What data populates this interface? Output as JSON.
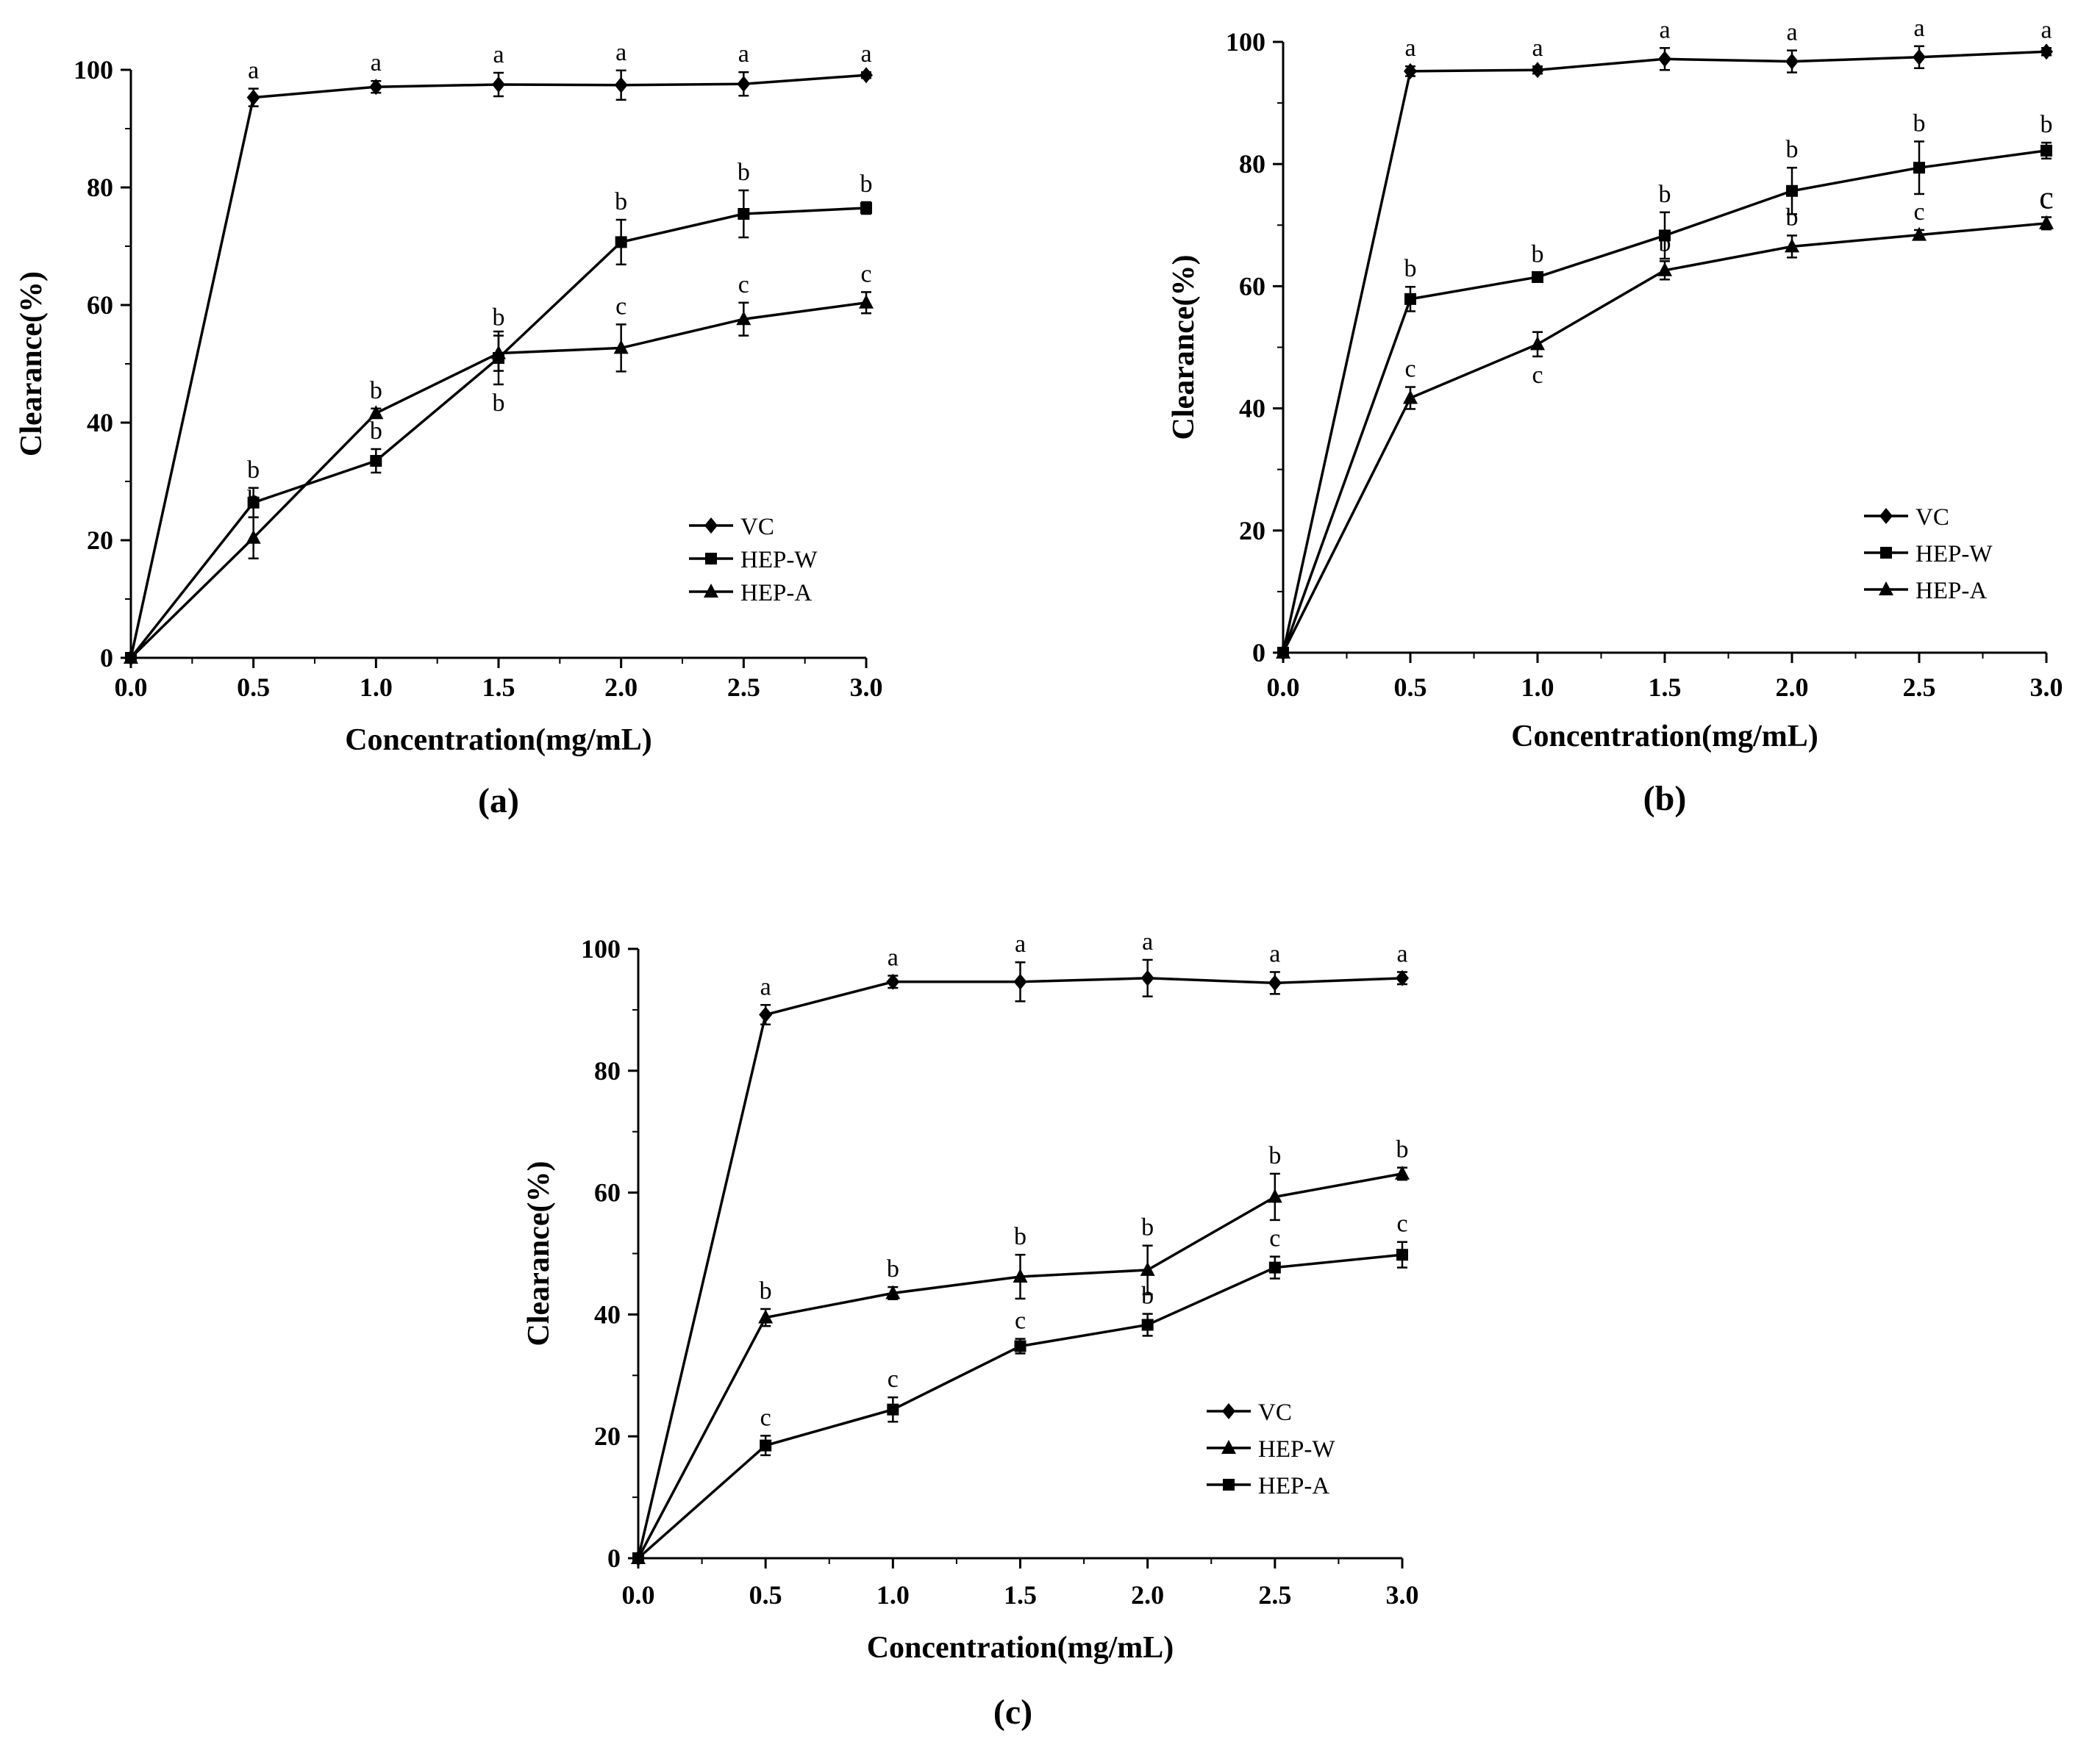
{
  "chart_data": [
    {
      "type": "line",
      "panel_label": "(a)",
      "xlabel": "Concentration(mg/mL)",
      "ylabel": "Clearance(%)",
      "xlim": [
        0,
        3
      ],
      "ylim": [
        0,
        100
      ],
      "x_ticks": [
        "0.0",
        "0.5",
        "1.0",
        "1.5",
        "2.0",
        "2.5",
        "3.0"
      ],
      "y_ticks": [
        "0",
        "20",
        "40",
        "60",
        "80",
        "100"
      ],
      "x": [
        0,
        0.5,
        1.0,
        1.5,
        2.0,
        2.5,
        3.0
      ],
      "legend_position": "bottom-right",
      "series": [
        {
          "name": "VC",
          "marker": "diamond",
          "values": [
            0,
            95.3,
            97.1,
            97.5,
            97.4,
            97.6,
            99.1
          ],
          "errors": [
            0,
            1.5,
            1.0,
            2.0,
            2.5,
            2.0,
            0.5
          ],
          "labels": [
            "",
            "a",
            "a",
            "a",
            "a",
            "a",
            "a"
          ],
          "label_side": [
            "up",
            "up",
            "up",
            "up",
            "up",
            "up",
            "up"
          ]
        },
        {
          "name": "HEP-W",
          "marker": "square",
          "values": [
            0,
            26.4,
            33.5,
            51.0,
            70.7,
            75.5,
            76.5
          ],
          "errors": [
            0,
            2.5,
            2.0,
            4.5,
            3.8,
            4.0,
            1.0
          ],
          "labels": [
            "",
            "b",
            "b",
            "b",
            "b",
            "b",
            "b"
          ],
          "label_side": [
            "up",
            "up",
            "up",
            "down",
            "up",
            "up",
            "up"
          ]
        },
        {
          "name": "HEP-A",
          "marker": "triangle",
          "values": [
            0,
            20.4,
            41.6,
            51.8,
            52.7,
            57.6,
            60.4
          ],
          "errors": [
            0,
            3.5,
            0.8,
            3.0,
            4.0,
            2.8,
            1.8
          ],
          "labels": [
            "",
            "b",
            "b",
            "b",
            "c",
            "c",
            "c"
          ],
          "label_side": [
            "down",
            "up",
            "up",
            "up",
            "up",
            "up",
            "up"
          ]
        }
      ]
    },
    {
      "type": "line",
      "panel_label": "(b)",
      "xlabel": "Concentration(mg/mL)",
      "ylabel": "Clearance(%)",
      "xlim": [
        0,
        3
      ],
      "ylim": [
        0,
        100
      ],
      "x_ticks": [
        "0.0",
        "0.5",
        "1.0",
        "1.5",
        "2.0",
        "2.5",
        "3.0"
      ],
      "y_ticks": [
        "0",
        "20",
        "40",
        "60",
        "80",
        "100"
      ],
      "x": [
        0,
        0.5,
        1.0,
        1.5,
        2.0,
        2.5,
        3.0
      ],
      "legend_position": "bottom-right",
      "series": [
        {
          "name": "VC",
          "marker": "diamond",
          "values": [
            0,
            95.2,
            95.4,
            97.2,
            96.8,
            97.5,
            98.4
          ],
          "errors": [
            0,
            0.8,
            0.6,
            1.8,
            1.8,
            1.8,
            0.6
          ],
          "labels": [
            "",
            "a",
            "a",
            "a",
            "a",
            "a",
            "a"
          ],
          "label_side": [
            "up",
            "up",
            "up",
            "up",
            "up",
            "up",
            "up"
          ]
        },
        {
          "name": "HEP-W",
          "marker": "square",
          "values": [
            0,
            57.9,
            61.5,
            68.3,
            75.6,
            79.4,
            82.2
          ],
          "errors": [
            0,
            2.0,
            0.8,
            3.8,
            3.8,
            4.3,
            1.3
          ],
          "labels": [
            "",
            "b",
            "b",
            "b",
            "b",
            "b",
            "b"
          ],
          "label_side": [
            "up",
            "up",
            "up",
            "up",
            "up",
            "up",
            "up"
          ]
        },
        {
          "name": "HEP-A",
          "marker": "triangle",
          "values": [
            0,
            41.7,
            50.5,
            62.6,
            66.5,
            68.4,
            70.3
          ],
          "errors": [
            0,
            1.8,
            2.0,
            1.5,
            1.8,
            0.8,
            1.0
          ],
          "labels": [
            "",
            "c",
            "c",
            "b",
            "b",
            "c",
            "c"
          ],
          "label_side": [
            "up",
            "up",
            "down",
            "up",
            "up",
            "up",
            "up"
          ]
        }
      ]
    },
    {
      "type": "line",
      "panel_label": "(c)",
      "xlabel": "Concentration(mg/mL)",
      "ylabel": "Clearance(%)",
      "xlim": [
        0,
        3
      ],
      "ylim": [
        0,
        100
      ],
      "x_ticks": [
        "0.0",
        "0.5",
        "1.0",
        "1.5",
        "2.0",
        "2.5",
        "3.0"
      ],
      "y_ticks": [
        "0",
        "20",
        "40",
        "60",
        "80",
        "100"
      ],
      "x": [
        0,
        0.5,
        1.0,
        1.5,
        2.0,
        2.5,
        3.0
      ],
      "legend_position": "bottom-right",
      "series": [
        {
          "name": "VC",
          "marker": "diamond",
          "values": [
            0,
            89.2,
            94.6,
            94.6,
            95.2,
            94.4,
            95.2
          ],
          "errors": [
            0,
            1.6,
            1.0,
            3.2,
            3.0,
            1.8,
            1.0
          ],
          "labels": [
            "",
            "a",
            "a",
            "a",
            "a",
            "a",
            "a"
          ],
          "label_side": [
            "up",
            "up",
            "up",
            "up",
            "up",
            "up",
            "up"
          ]
        },
        {
          "name": "HEP-W",
          "marker": "triangle",
          "values": [
            0,
            39.5,
            43.5,
            46.2,
            47.3,
            59.3,
            63.1
          ],
          "errors": [
            0,
            1.4,
            1.0,
            3.6,
            4.0,
            3.8,
            1.0
          ],
          "labels": [
            "",
            "b",
            "b",
            "b",
            "b",
            "b",
            "b"
          ],
          "label_side": [
            "up",
            "up",
            "up",
            "up",
            "up",
            "up",
            "up"
          ]
        },
        {
          "name": "HEP-A",
          "marker": "square",
          "values": [
            0,
            18.5,
            24.4,
            34.8,
            38.3,
            47.7,
            49.8
          ],
          "errors": [
            0,
            1.6,
            2.0,
            1.2,
            1.8,
            1.8,
            2.1
          ],
          "labels": [
            "",
            "c",
            "c",
            "c",
            "b",
            "c",
            "c"
          ],
          "label_side": [
            "up",
            "up",
            "up",
            "up",
            "up",
            "up",
            "up"
          ]
        }
      ]
    }
  ]
}
